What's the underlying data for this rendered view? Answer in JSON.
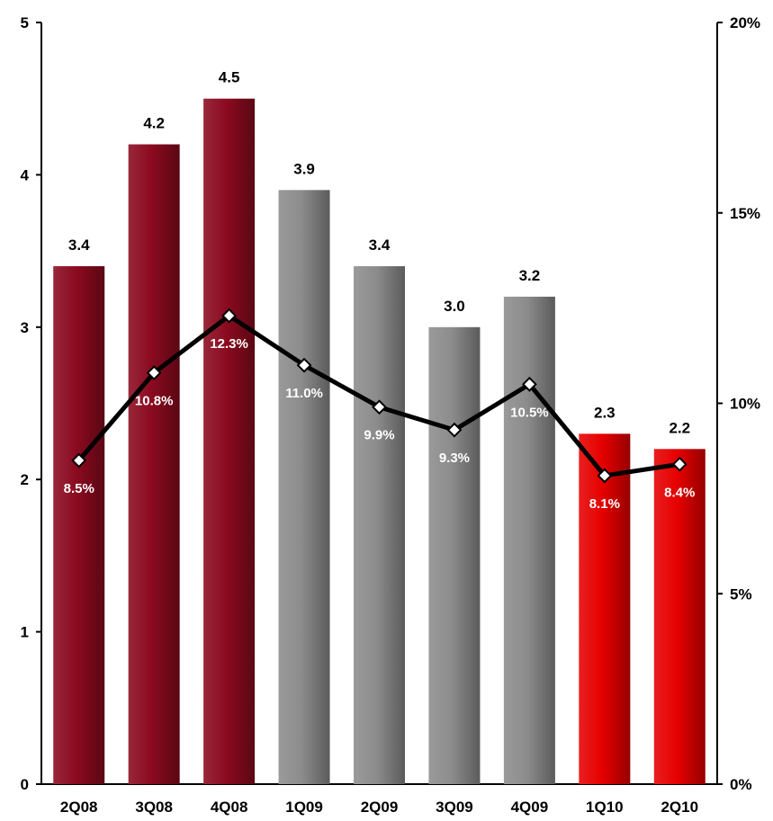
{
  "chart_data": {
    "type": "bar",
    "categories": [
      "2Q08",
      "3Q08",
      "4Q08",
      "1Q09",
      "2Q09",
      "3Q09",
      "4Q09",
      "1Q10",
      "2Q10"
    ],
    "series": [
      {
        "axis": "left",
        "values": [
          3.4,
          4.2,
          4.5,
          3.9,
          3.4,
          3.0,
          3.2,
          2.3,
          2.2
        ],
        "labels": [
          "3.4",
          "4.2",
          "4.5",
          "3.9",
          "3.4",
          "3.0",
          "3.2",
          "2.3",
          "2.2"
        ],
        "bar_colors": [
          "#8b0a1f",
          "#8b0a1f",
          "#8b0a1f",
          "#8c8c8c",
          "#8c8c8c",
          "#8c8c8c",
          "#8c8c8c",
          "#e60000",
          "#e60000"
        ]
      },
      {
        "type": "line",
        "axis": "right",
        "values": [
          8.5,
          10.8,
          12.3,
          11.0,
          9.9,
          9.3,
          10.5,
          8.1,
          8.4
        ],
        "labels": [
          "8.5%",
          "10.8%",
          "12.3%",
          "11.0%",
          "9.9%",
          "9.3%",
          "10.5%",
          "8.1%",
          "8.4%"
        ],
        "color": "#000000"
      }
    ],
    "y_left": {
      "ylim": [
        0,
        5
      ],
      "ticks": [
        "0",
        "1",
        "2",
        "3",
        "4",
        "5"
      ]
    },
    "y_right": {
      "ylim": [
        0,
        20
      ],
      "ticks": [
        "0%",
        "5%",
        "10%",
        "15%",
        "20%"
      ]
    },
    "grid": false,
    "legend": "none"
  }
}
